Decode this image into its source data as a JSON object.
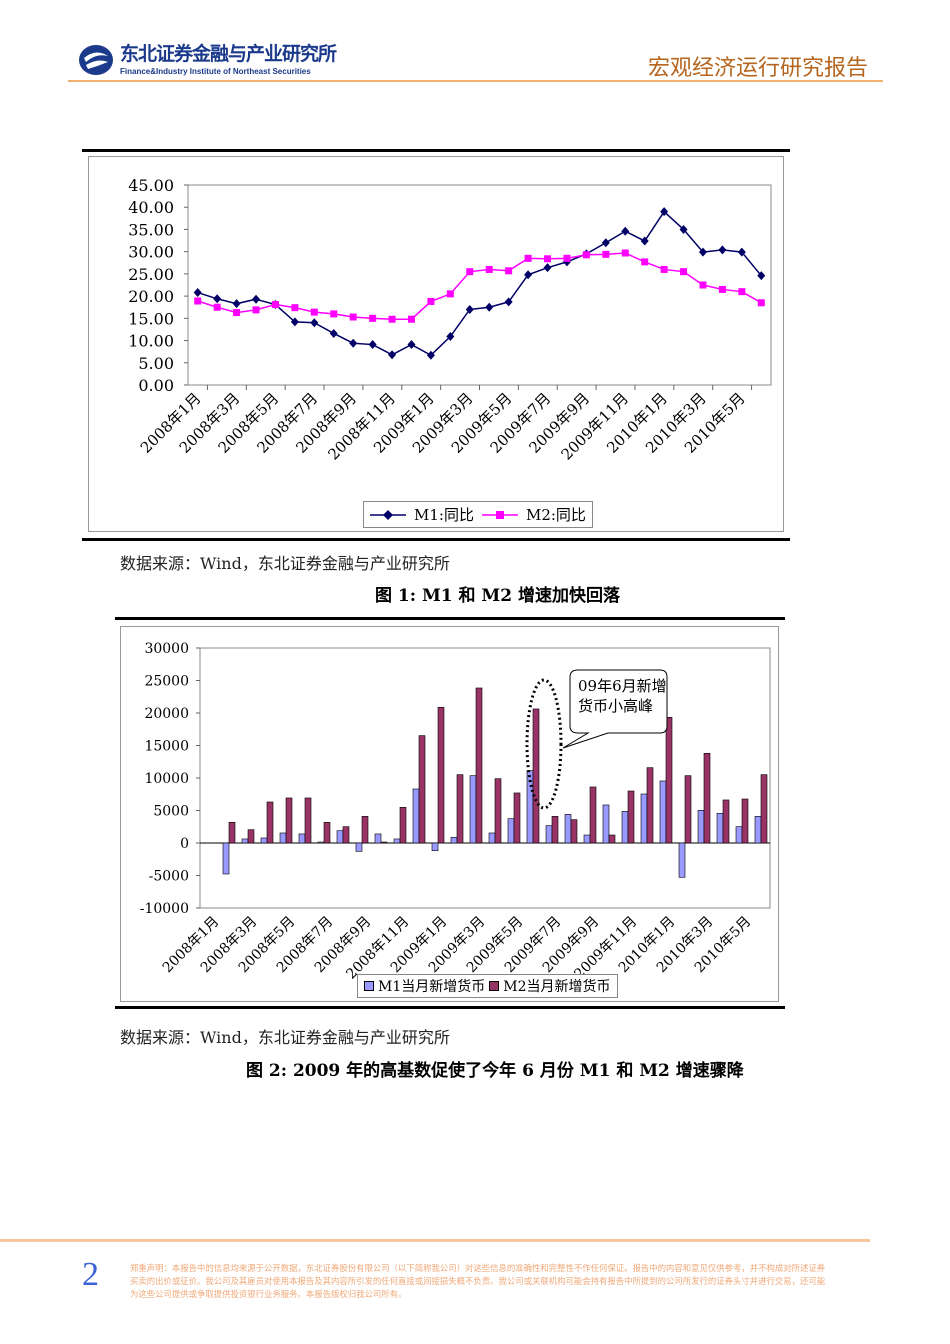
{
  "header": {
    "org_cn": "东北证券金融与产业研究所",
    "org_en": "Finance&Industry Institute of Northeast Securities",
    "report_title": "宏观经济运行研究报告",
    "accent": "#b5651d"
  },
  "figure1": {
    "source": "数据来源：Wind，东北证券金融与产业研究所",
    "caption": "图 1:  M1 和 M2 增速加快回落"
  },
  "figure2": {
    "source": "数据来源：Wind，东北证券金融与产业研究所",
    "caption": "图 2:  2009 年的高基数促使了今年 6 月份 M1 和 M2 增速骤降",
    "annotation": [
      "09年6月新增",
      "货币小高峰"
    ]
  },
  "chart_data": [
    {
      "type": "line",
      "title": "",
      "xlabel": "",
      "ylabel": "",
      "ylim": [
        0,
        45
      ],
      "yticks": [
        "0.00",
        "5.00",
        "10.00",
        "15.00",
        "20.00",
        "25.00",
        "30.00",
        "35.00",
        "40.00",
        "45.00"
      ],
      "x": [
        "2008年1月",
        "2008年2月",
        "2008年3月",
        "2008年4月",
        "2008年5月",
        "2008年6月",
        "2008年7月",
        "2008年8月",
        "2008年9月",
        "2008年10月",
        "2008年11月",
        "2008年12月",
        "2009年1月",
        "2009年2月",
        "2009年3月",
        "2009年4月",
        "2009年5月",
        "2009年6月",
        "2009年7月",
        "2009年8月",
        "2009年9月",
        "2009年10月",
        "2009年11月",
        "2009年12月",
        "2010年1月",
        "2010年2月",
        "2010年3月",
        "2010年4月",
        "2010年5月",
        "2010年6月"
      ],
      "xticklabels": [
        "2008年1月",
        "2008年3月",
        "2008年5月",
        "2008年7月",
        "2008年9月",
        "2008年11月",
        "2009年1月",
        "2009年3月",
        "2009年5月",
        "2009年7月",
        "2009年9月",
        "2009年11月",
        "2010年1月",
        "2010年3月",
        "2010年5月"
      ],
      "legend_position": "bottom",
      "series": [
        {
          "name": "M1:同比",
          "color": "#000066",
          "marker": "diamond",
          "values": [
            20.8,
            19.4,
            18.3,
            19.3,
            18.1,
            14.2,
            14.0,
            11.6,
            9.4,
            9.1,
            6.8,
            9.1,
            6.7,
            10.9,
            17.0,
            17.5,
            18.7,
            24.8,
            26.4,
            27.7,
            29.5,
            32.0,
            34.6,
            32.4,
            39.0,
            35.0,
            29.9,
            30.4,
            29.9,
            24.6
          ]
        },
        {
          "name": "M2:同比",
          "color": "#ff00ff",
          "marker": "square",
          "values": [
            18.9,
            17.5,
            16.3,
            16.9,
            18.1,
            17.4,
            16.4,
            16.0,
            15.3,
            15.0,
            14.8,
            14.8,
            18.8,
            20.5,
            25.5,
            26.0,
            25.7,
            28.5,
            28.4,
            28.5,
            29.3,
            29.4,
            29.7,
            27.7,
            26.0,
            25.5,
            22.5,
            21.5,
            21.0,
            18.5
          ]
        }
      ]
    },
    {
      "type": "bar",
      "title": "",
      "xlabel": "",
      "ylabel": "",
      "ylim": [
        -10000,
        30000
      ],
      "yticks": [
        "-10000",
        "-5000",
        "0",
        "5000",
        "10000",
        "15000",
        "20000",
        "25000",
        "30000"
      ],
      "xticklabels": [
        "2008年1月",
        "2008年3月",
        "2008年5月",
        "2008年7月",
        "2008年9月",
        "2008年11月",
        "2009年1月",
        "2009年3月",
        "2009年5月",
        "2009年7月",
        "2009年9月",
        "2009年11月",
        "2010年1月",
        "2010年3月",
        "2010年5月"
      ],
      "legend_position": "bottom",
      "series": [
        {
          "name": "M1当月新增货币",
          "color": "#9999ff",
          "values": [
            null,
            -4770,
            620,
            770,
            1540,
            1390,
            150,
            1900,
            -1280,
            1390,
            620,
            8310,
            -1180,
            870,
            10360,
            1540,
            3740,
            11130,
            2670,
            4410,
            1230,
            5850,
            4870,
            7540,
            9540,
            -5280,
            5030,
            4570,
            2510,
            4100
          ]
        },
        {
          "name": "M2当月新增货币",
          "color": "#993366",
          "values": [
            null,
            3180,
            2050,
            6310,
            6930,
            6930,
            3180,
            2510,
            4100,
            150,
            5490,
            16520,
            20880,
            10520,
            23850,
            9900,
            7700,
            20620,
            4100,
            3590,
            8620,
            1230,
            8000,
            11590,
            19340,
            10360,
            13800,
            6620,
            6770,
            10520
          ]
        }
      ]
    }
  ],
  "footer": {
    "page": "2",
    "disclaimer": "郑重声明：本报告中的信息均来源于公开数据，东北证券股份有限公司（以下简称我公司）对这些信息的准确性和完整性不作任何保证。报告中的内容和意见仅供参考，并不构成对所述证券买卖的出价或征价。我公司及其雇员对使用本报告及其内容所引发的任何直接或间接损失概不负责。我公司或关联机构可能会持有报告中所提到的公司所发行的证券头寸并进行交易，还可能为这些公司提供或争取提供投资银行业务服务。本报告版权归我公司所有。"
  }
}
